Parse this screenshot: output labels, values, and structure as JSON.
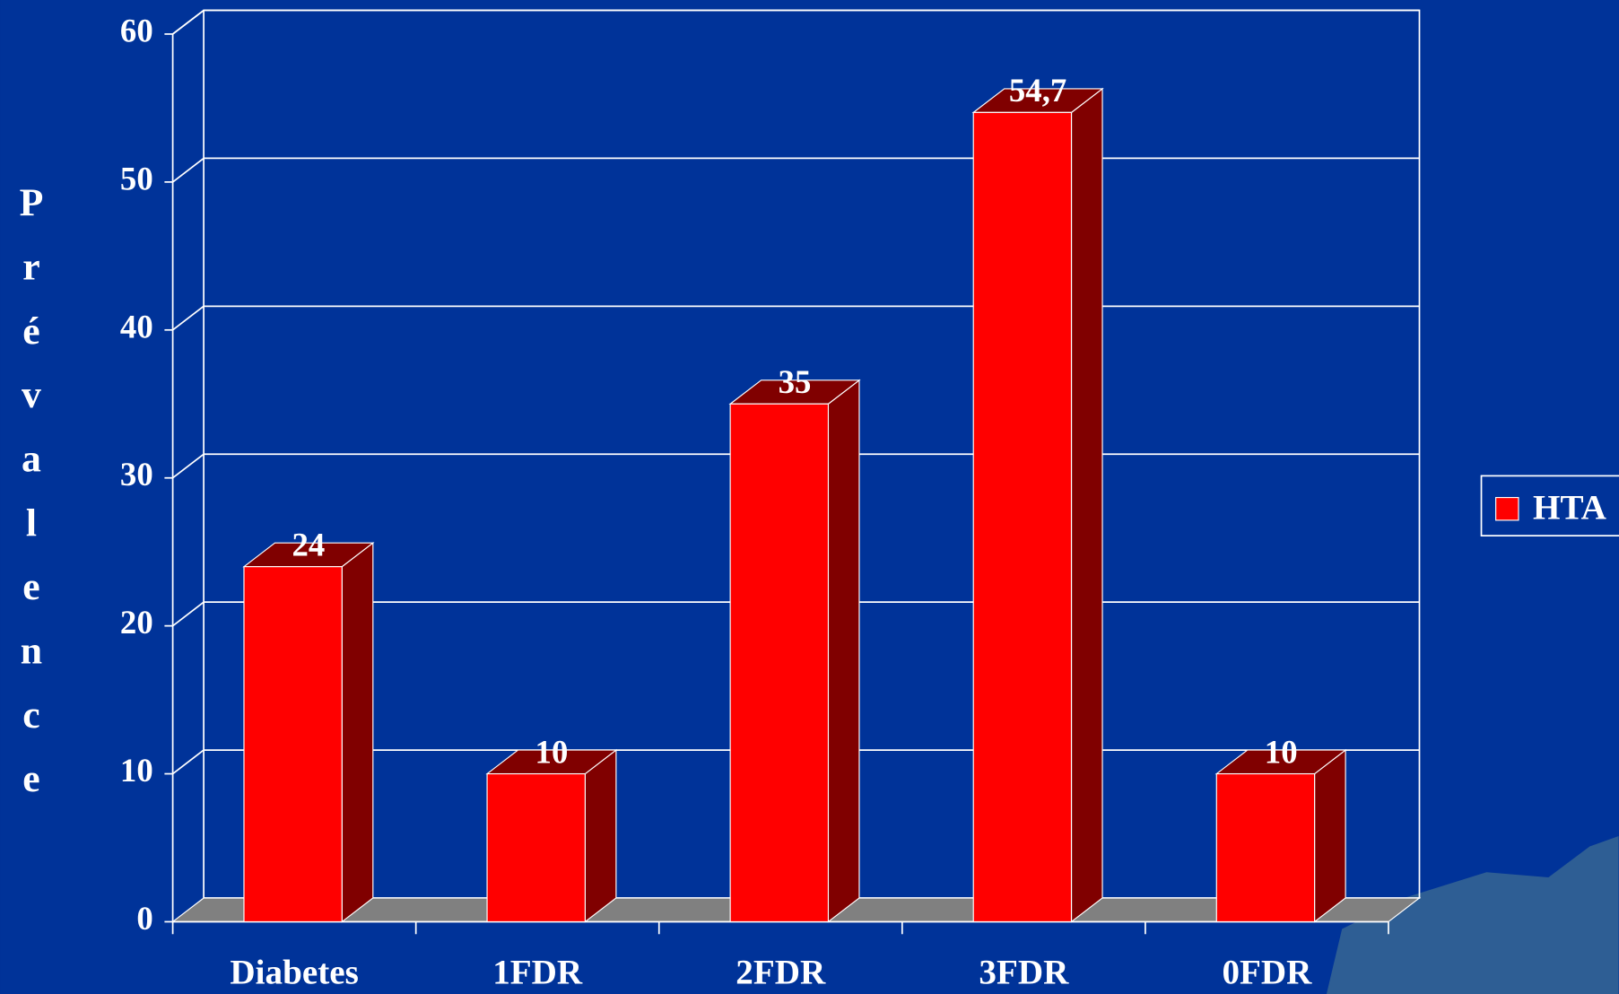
{
  "chart_data": {
    "type": "bar3d",
    "y_label": "Prévalence",
    "categories": [
      "Diabetes",
      "1FDR",
      "2FDR",
      "3FDR",
      "0FDR"
    ],
    "series": [
      {
        "name": "HTA",
        "color": "#ff0000",
        "side_color": "#800000",
        "values": [
          24,
          10,
          35,
          54.7,
          10
        ],
        "value_labels": [
          "24",
          "10",
          "35",
          "54,7",
          "10"
        ]
      }
    ],
    "ylim": [
      0,
      60
    ],
    "yticks": [
      0,
      10,
      20,
      30,
      40,
      50,
      60
    ],
    "grid": true,
    "legend": "right"
  }
}
